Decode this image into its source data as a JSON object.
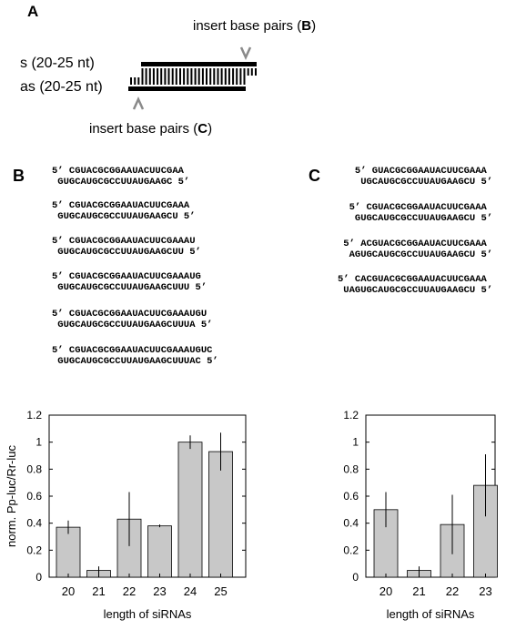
{
  "panel_a": {
    "letter": "A",
    "insert_top": {
      "prefix": "insert base pairs (",
      "letter": "B",
      "suffix": ")"
    },
    "insert_bottom": {
      "prefix": "insert base pairs (",
      "letter": "C",
      "suffix": ")"
    },
    "sense_label": "s (20-25 nt)",
    "antisense_label": "as (20-25 nt)",
    "caret_top": "V",
    "caret_bottom": "Λ"
  },
  "panel_b": {
    "letter": "B",
    "duplexes": [
      {
        "top": "5’ CGUACGCGGAAUACUUCGAA",
        "bottom": " GUGCAUGCGCCUUAUGAAGC 5’"
      },
      {
        "top": "5’ CGUACGCGGAAUACUUCGAAA",
        "bottom": " GUGCAUGCGCCUUAUGAAGCU 5’"
      },
      {
        "top": "5’ CGUACGCGGAAUACUUCGAAAU",
        "bottom": " GUGCAUGCGCCUUAUGAAGCUU 5’"
      },
      {
        "top": "5’ CGUACGCGGAAUACUUCGAAAUG",
        "bottom": " GUGCAUGCGCCUUAUGAAGCUUU 5’"
      },
      {
        "top": "5’ CGUACGCGGAAUACUUCGAAAUGU",
        "bottom": " GUGCAUGCGCCUUAUGAAGCUUUA 5’"
      },
      {
        "top": "5’ CGUACGCGGAAUACUUCGAAAUGUC",
        "bottom": " GUGCAUGCGCCUUAUGAAGCUUUAC 5’"
      }
    ]
  },
  "panel_c": {
    "letter": "C",
    "duplexes": [
      {
        "top": "   5’ GUACGCGGAAUACUUCGAAA",
        "bottom": "    UGCAUGCGCCUUAUGAAGCU 5’"
      },
      {
        "top": "  5’ CGUACGCGGAAUACUUCGAAA",
        "bottom": "   GUGCAUGCGCCUUAUGAAGCU 5’"
      },
      {
        "top": " 5’ ACGUACGCGGAAUACUUCGAAA",
        "bottom": "  AGUGCAUGCGCCUUAUGAAGCU 5’"
      },
      {
        "top": "5’ CACGUACGCGGAAUACUUCGAAA",
        "bottom": " UAGUGCAUGCGCCUUAUGAAGCU 5’"
      }
    ]
  },
  "chart_data": [
    {
      "type": "bar",
      "panel": "B",
      "categories": [
        "20",
        "21",
        "22",
        "23",
        "24",
        "25"
      ],
      "values": [
        0.37,
        0.05,
        0.43,
        0.38,
        1.0,
        0.93
      ],
      "errors": [
        0.05,
        0.03,
        0.2,
        0.01,
        0.05,
        0.14
      ],
      "ylabel": "norm. Pp-luc/Rr-luc",
      "xlabel": "length of siRNAs",
      "ylim": [
        0,
        1.2
      ],
      "yticks": [
        "0",
        "0.2",
        "0.4",
        "0.6",
        "0.8",
        "1",
        "1.2"
      ],
      "bar_color": "#c8c8c8"
    },
    {
      "type": "bar",
      "panel": "C",
      "categories": [
        "20",
        "21",
        "22",
        "23"
      ],
      "values": [
        0.5,
        0.05,
        0.39,
        0.68
      ],
      "errors": [
        0.13,
        0.03,
        0.22,
        0.23
      ],
      "ylabel": "",
      "xlabel": "length of siRNAs",
      "ylim": [
        0,
        1.2
      ],
      "yticks": [
        "0",
        "0.2",
        "0.4",
        "0.6",
        "0.8",
        "1",
        "1.2"
      ],
      "bar_color": "#c8c8c8"
    }
  ]
}
